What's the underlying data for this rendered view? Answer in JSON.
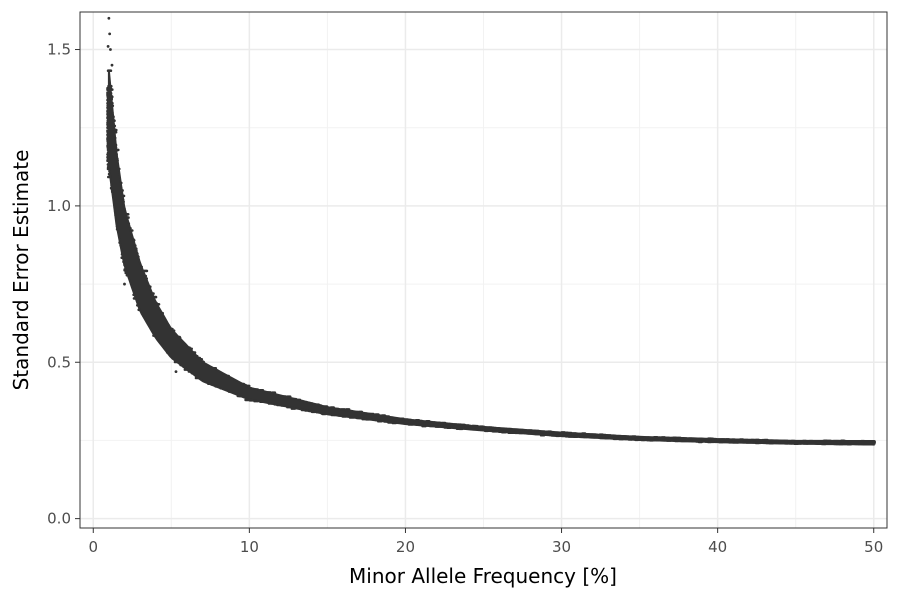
{
  "chart_data": {
    "type": "scatter",
    "title": "",
    "xlabel": "Minor Allele Frequency [%]",
    "ylabel": "Standard Error Estimate",
    "xlim": [
      -0.85,
      50.85
    ],
    "ylim": [
      -0.03,
      1.62
    ],
    "x_ticks": [
      0,
      10,
      20,
      30,
      40,
      50
    ],
    "y_ticks": [
      0.0,
      0.5,
      1.0,
      1.5
    ],
    "x_tick_labels": [
      "0",
      "10",
      "20",
      "30",
      "40",
      "50"
    ],
    "y_tick_labels": [
      "0.0",
      "0.5",
      "1.0",
      "1.5"
    ],
    "grid": true,
    "legend": "none",
    "point_color": "#333333",
    "series": [
      {
        "band_lower": [
          [
            1.0,
            1.08
          ],
          [
            1.5,
            0.9
          ],
          [
            2.0,
            0.78
          ],
          [
            3.0,
            0.64
          ],
          [
            4.0,
            0.56
          ],
          [
            5.0,
            0.5
          ],
          [
            7.0,
            0.43
          ],
          [
            10.0,
            0.375
          ],
          [
            15.0,
            0.33
          ],
          [
            20.0,
            0.3
          ],
          [
            25.0,
            0.28
          ],
          [
            30.0,
            0.262
          ],
          [
            35.0,
            0.25
          ],
          [
            40.0,
            0.243
          ],
          [
            45.0,
            0.238
          ],
          [
            50.0,
            0.235
          ]
        ],
        "band_upper": [
          [
            1.0,
            1.48
          ],
          [
            1.5,
            1.2
          ],
          [
            2.0,
            1.02
          ],
          [
            3.0,
            0.84
          ],
          [
            4.0,
            0.71
          ],
          [
            5.0,
            0.62
          ],
          [
            7.0,
            0.51
          ],
          [
            10.0,
            0.425
          ],
          [
            15.0,
            0.36
          ],
          [
            20.0,
            0.32
          ],
          [
            25.0,
            0.295
          ],
          [
            30.0,
            0.277
          ],
          [
            35.0,
            0.263
          ],
          [
            40.0,
            0.256
          ],
          [
            45.0,
            0.25
          ],
          [
            50.0,
            0.25
          ]
        ],
        "outliers": [
          [
            1.0,
            1.6
          ],
          [
            1.05,
            1.55
          ],
          [
            0.95,
            1.51
          ],
          [
            1.1,
            1.5
          ],
          [
            1.2,
            1.45
          ],
          [
            2.0,
            0.75
          ],
          [
            5.3,
            0.47
          ]
        ]
      }
    ]
  }
}
